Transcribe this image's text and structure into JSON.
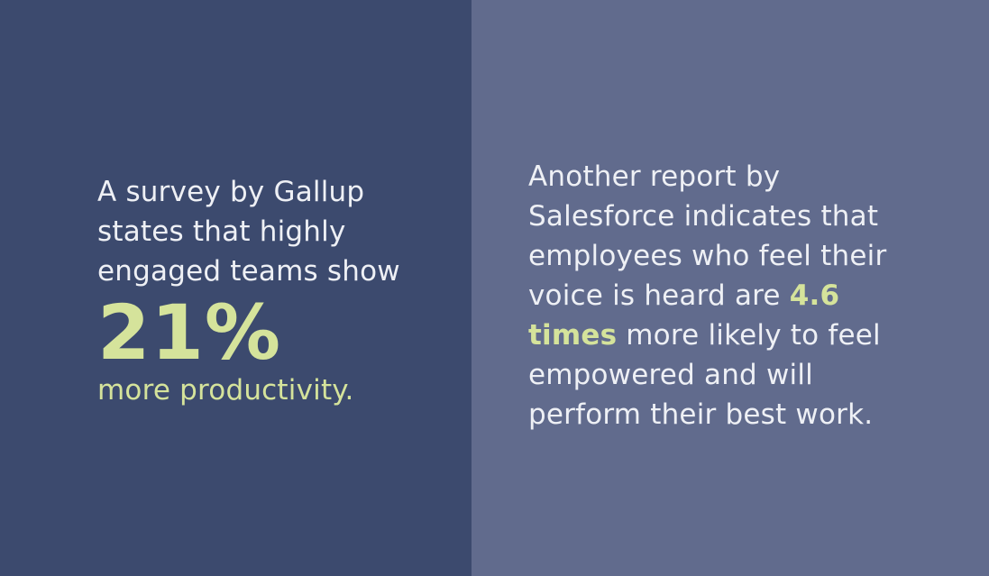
{
  "colors": {
    "left_background": "#3c4a6e",
    "right_background": "#616b8d",
    "text": "#eef0f5",
    "accent": "#d5e39b"
  },
  "left": {
    "line1": "A survey by Gallup",
    "line2": "states that highly",
    "line3": "engaged teams show",
    "stat": "21%",
    "stat_caption": "more productivity."
  },
  "right": {
    "line1": "Another report by",
    "line2": "Salesforce indicates that",
    "line3": "employees who feel their",
    "line4_prefix": "voice is heard are ",
    "highlight_part1": "4.6",
    "highlight_part2": "times",
    "line5_suffix": " more likely to feel",
    "line6": "empowered and will",
    "line7": "perform their best work."
  }
}
